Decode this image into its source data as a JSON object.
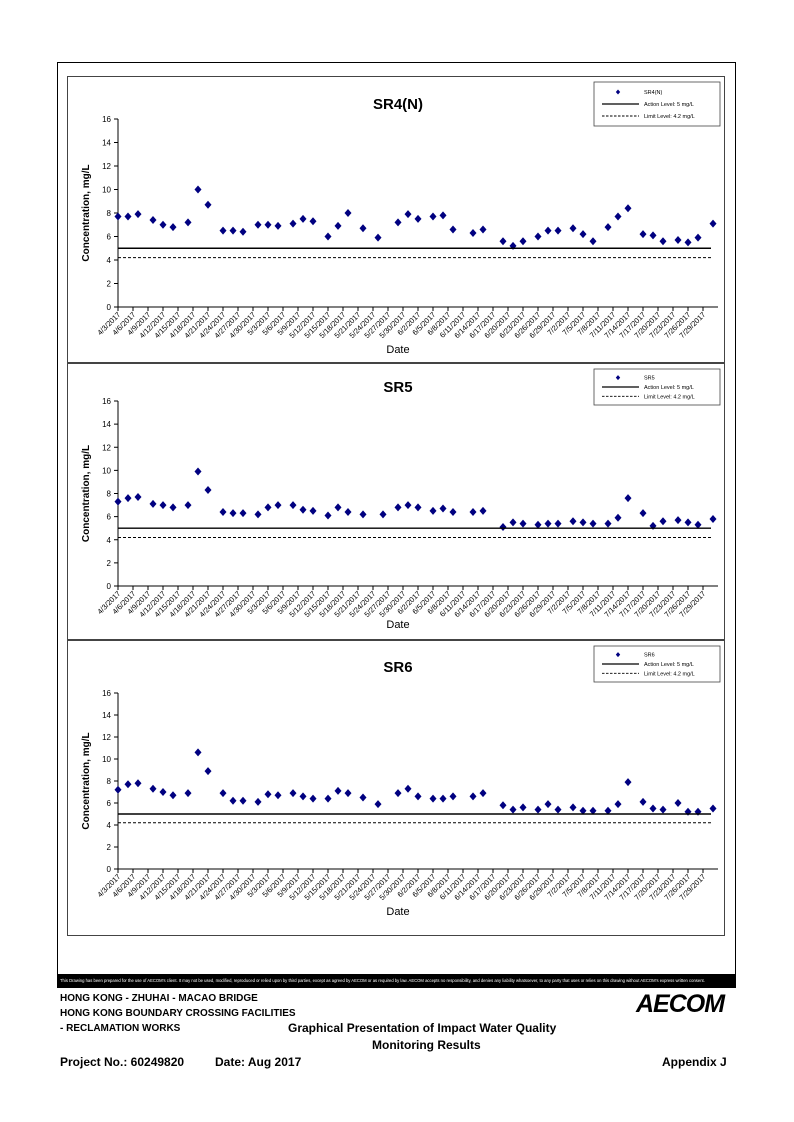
{
  "colors": {
    "marker": "#000080",
    "line": "#000000"
  },
  "chart_data": [
    {
      "type": "scatter",
      "title": "SR4(N)",
      "xlabel": "Date",
      "ylabel": "Concentration, mg/L",
      "ylim": [
        0,
        16
      ],
      "yticks": [
        0,
        2,
        4,
        6,
        8,
        10,
        12,
        14,
        16
      ],
      "grid": false,
      "legend_position": "top-right",
      "xtick_labels": [
        "4/3/2017",
        "4/6/2017",
        "4/9/2017",
        "4/12/2017",
        "4/15/2017",
        "4/18/2017",
        "4/21/2017",
        "4/24/2017",
        "4/27/2017",
        "4/30/2017",
        "5/3/2017",
        "5/6/2017",
        "5/9/2017",
        "5/12/2017",
        "5/15/2017",
        "5/18/2017",
        "5/21/2017",
        "5/24/2017",
        "5/27/2017",
        "5/30/2017",
        "6/2/2017",
        "6/5/2017",
        "6/8/2017",
        "6/11/2017",
        "6/14/2017",
        "6/17/2017",
        "6/20/2017",
        "6/23/2017",
        "6/26/2017",
        "6/29/2017",
        "7/2/2017",
        "7/5/2017",
        "7/8/2017",
        "7/11/2017",
        "7/14/2017",
        "7/17/2017",
        "7/20/2017",
        "7/23/2017",
        "7/26/2017",
        "7/29/2017"
      ],
      "series": [
        {
          "name": "SR4(N)",
          "kind": "points",
          "points": [
            [
              "4/3/2017",
              7.7
            ],
            [
              "4/5/2017",
              7.7
            ],
            [
              "4/7/2017",
              7.9
            ],
            [
              "4/10/2017",
              7.4
            ],
            [
              "4/12/2017",
              7.0
            ],
            [
              "4/14/2017",
              6.8
            ],
            [
              "4/17/2017",
              7.2
            ],
            [
              "4/19/2017",
              10.0
            ],
            [
              "4/21/2017",
              8.7
            ],
            [
              "4/24/2017",
              6.5
            ],
            [
              "4/26/2017",
              6.5
            ],
            [
              "4/28/2017",
              6.4
            ],
            [
              "5/1/2017",
              7.0
            ],
            [
              "5/3/2017",
              7.0
            ],
            [
              "5/5/2017",
              6.9
            ],
            [
              "5/8/2017",
              7.1
            ],
            [
              "5/10/2017",
              7.5
            ],
            [
              "5/12/2017",
              7.3
            ],
            [
              "5/15/2017",
              6.0
            ],
            [
              "5/17/2017",
              6.9
            ],
            [
              "5/19/2017",
              8.0
            ],
            [
              "5/22/2017",
              6.7
            ],
            [
              "5/25/2017",
              5.9
            ],
            [
              "5/29/2017",
              7.2
            ],
            [
              "5/31/2017",
              7.9
            ],
            [
              "6/2/2017",
              7.5
            ],
            [
              "6/5/2017",
              7.7
            ],
            [
              "6/7/2017",
              7.8
            ],
            [
              "6/9/2017",
              6.6
            ],
            [
              "6/13/2017",
              6.3
            ],
            [
              "6/15/2017",
              6.6
            ],
            [
              "6/19/2017",
              5.6
            ],
            [
              "6/21/2017",
              5.2
            ],
            [
              "6/23/2017",
              5.6
            ],
            [
              "6/26/2017",
              6.0
            ],
            [
              "6/28/2017",
              6.5
            ],
            [
              "6/30/2017",
              6.5
            ],
            [
              "7/3/2017",
              6.7
            ],
            [
              "7/5/2017",
              6.2
            ],
            [
              "7/7/2017",
              5.6
            ],
            [
              "7/10/2017",
              6.8
            ],
            [
              "7/12/2017",
              7.7
            ],
            [
              "7/14/2017",
              8.4
            ],
            [
              "7/17/2017",
              6.2
            ],
            [
              "7/19/2017",
              6.1
            ],
            [
              "7/21/2017",
              5.6
            ],
            [
              "7/24/2017",
              5.7
            ],
            [
              "7/26/2017",
              5.5
            ],
            [
              "7/28/2017",
              5.9
            ],
            [
              "7/31/2017",
              7.1
            ]
          ]
        },
        {
          "name": "Action Level: 5 mg/L",
          "kind": "hline",
          "value": 5
        },
        {
          "name": "Limit Level: 4.2 mg/L",
          "kind": "hline",
          "value": 4.2
        }
      ]
    },
    {
      "type": "scatter",
      "title": "SR5",
      "xlabel": "Date",
      "ylabel": "Concentration, mg/L",
      "ylim": [
        0,
        16
      ],
      "yticks": [
        0,
        2,
        4,
        6,
        8,
        10,
        12,
        14,
        16
      ],
      "grid": false,
      "legend_position": "top-right",
      "xtick_labels": [
        "4/3/2017",
        "4/6/2017",
        "4/9/2017",
        "4/12/2017",
        "4/15/2017",
        "4/18/2017",
        "4/21/2017",
        "4/24/2017",
        "4/27/2017",
        "4/30/2017",
        "5/3/2017",
        "5/6/2017",
        "5/9/2017",
        "5/12/2017",
        "5/15/2017",
        "5/18/2017",
        "5/21/2017",
        "5/24/2017",
        "5/27/2017",
        "5/30/2017",
        "6/2/2017",
        "6/5/2017",
        "6/8/2017",
        "6/11/2017",
        "6/14/2017",
        "6/17/2017",
        "6/20/2017",
        "6/23/2017",
        "6/26/2017",
        "6/29/2017",
        "7/2/2017",
        "7/5/2017",
        "7/8/2017",
        "7/11/2017",
        "7/14/2017",
        "7/17/2017",
        "7/20/2017",
        "7/23/2017",
        "7/26/2017",
        "7/29/2017"
      ],
      "series": [
        {
          "name": "SR5",
          "kind": "points",
          "points": [
            [
              "4/3/2017",
              7.3
            ],
            [
              "4/5/2017",
              7.6
            ],
            [
              "4/7/2017",
              7.7
            ],
            [
              "4/10/2017",
              7.1
            ],
            [
              "4/12/2017",
              7.0
            ],
            [
              "4/14/2017",
              6.8
            ],
            [
              "4/17/2017",
              7.0
            ],
            [
              "4/19/2017",
              9.9
            ],
            [
              "4/21/2017",
              8.3
            ],
            [
              "4/24/2017",
              6.4
            ],
            [
              "4/26/2017",
              6.3
            ],
            [
              "4/28/2017",
              6.3
            ],
            [
              "5/1/2017",
              6.2
            ],
            [
              "5/3/2017",
              6.8
            ],
            [
              "5/5/2017",
              7.0
            ],
            [
              "5/8/2017",
              7.0
            ],
            [
              "5/10/2017",
              6.6
            ],
            [
              "5/12/2017",
              6.5
            ],
            [
              "5/15/2017",
              6.1
            ],
            [
              "5/17/2017",
              6.8
            ],
            [
              "5/19/2017",
              6.4
            ],
            [
              "5/22/2017",
              6.2
            ],
            [
              "5/26/2017",
              6.2
            ],
            [
              "5/29/2017",
              6.8
            ],
            [
              "5/31/2017",
              7.0
            ],
            [
              "6/2/2017",
              6.8
            ],
            [
              "6/5/2017",
              6.5
            ],
            [
              "6/7/2017",
              6.7
            ],
            [
              "6/9/2017",
              6.4
            ],
            [
              "6/13/2017",
              6.4
            ],
            [
              "6/15/2017",
              6.5
            ],
            [
              "6/19/2017",
              5.1
            ],
            [
              "6/21/2017",
              5.5
            ],
            [
              "6/23/2017",
              5.4
            ],
            [
              "6/26/2017",
              5.3
            ],
            [
              "6/28/2017",
              5.4
            ],
            [
              "6/30/2017",
              5.4
            ],
            [
              "7/3/2017",
              5.6
            ],
            [
              "7/5/2017",
              5.5
            ],
            [
              "7/7/2017",
              5.4
            ],
            [
              "7/10/2017",
              5.4
            ],
            [
              "7/12/2017",
              5.9
            ],
            [
              "7/14/2017",
              7.6
            ],
            [
              "7/17/2017",
              6.3
            ],
            [
              "7/19/2017",
              5.2
            ],
            [
              "7/21/2017",
              5.6
            ],
            [
              "7/24/2017",
              5.7
            ],
            [
              "7/26/2017",
              5.5
            ],
            [
              "7/28/2017",
              5.3
            ],
            [
              "7/31/2017",
              5.8
            ]
          ]
        },
        {
          "name": "Action Level: 5 mg/L",
          "kind": "hline",
          "value": 5
        },
        {
          "name": "Limit Level: 4.2 mg/L",
          "kind": "hline",
          "value": 4.2
        }
      ]
    },
    {
      "type": "scatter",
      "title": "SR6",
      "xlabel": "Date",
      "ylabel": "Concentration, mg/L",
      "ylim": [
        0,
        16
      ],
      "yticks": [
        0,
        2,
        4,
        6,
        8,
        10,
        12,
        14,
        16
      ],
      "grid": false,
      "legend_position": "top-right",
      "xtick_labels": [
        "4/3/2017",
        "4/6/2017",
        "4/9/2017",
        "4/12/2017",
        "4/15/2017",
        "4/18/2017",
        "4/21/2017",
        "4/24/2017",
        "4/27/2017",
        "4/30/2017",
        "5/3/2017",
        "5/6/2017",
        "5/9/2017",
        "5/12/2017",
        "5/15/2017",
        "5/18/2017",
        "5/21/2017",
        "5/24/2017",
        "5/27/2017",
        "5/30/2017",
        "6/2/2017",
        "6/5/2017",
        "6/8/2017",
        "6/11/2017",
        "6/14/2017",
        "6/17/2017",
        "6/20/2017",
        "6/23/2017",
        "6/26/2017",
        "6/29/2017",
        "7/2/2017",
        "7/5/2017",
        "7/8/2017",
        "7/11/2017",
        "7/14/2017",
        "7/17/2017",
        "7/20/2017",
        "7/23/2017",
        "7/26/2017",
        "7/29/2017"
      ],
      "series": [
        {
          "name": "SR6",
          "kind": "points",
          "points": [
            [
              "4/3/2017",
              7.2
            ],
            [
              "4/5/2017",
              7.7
            ],
            [
              "4/7/2017",
              7.8
            ],
            [
              "4/10/2017",
              7.3
            ],
            [
              "4/12/2017",
              7.0
            ],
            [
              "4/14/2017",
              6.7
            ],
            [
              "4/17/2017",
              6.9
            ],
            [
              "4/19/2017",
              10.6
            ],
            [
              "4/21/2017",
              8.9
            ],
            [
              "4/24/2017",
              6.9
            ],
            [
              "4/26/2017",
              6.2
            ],
            [
              "4/28/2017",
              6.2
            ],
            [
              "5/1/2017",
              6.1
            ],
            [
              "5/3/2017",
              6.8
            ],
            [
              "5/5/2017",
              6.7
            ],
            [
              "5/8/2017",
              6.9
            ],
            [
              "5/10/2017",
              6.6
            ],
            [
              "5/12/2017",
              6.4
            ],
            [
              "5/15/2017",
              6.4
            ],
            [
              "5/17/2017",
              7.1
            ],
            [
              "5/19/2017",
              6.9
            ],
            [
              "5/22/2017",
              6.5
            ],
            [
              "5/25/2017",
              5.9
            ],
            [
              "5/29/2017",
              6.9
            ],
            [
              "5/31/2017",
              7.3
            ],
            [
              "6/2/2017",
              6.6
            ],
            [
              "6/5/2017",
              6.4
            ],
            [
              "6/7/2017",
              6.4
            ],
            [
              "6/9/2017",
              6.6
            ],
            [
              "6/13/2017",
              6.6
            ],
            [
              "6/15/2017",
              6.9
            ],
            [
              "6/19/2017",
              5.8
            ],
            [
              "6/21/2017",
              5.4
            ],
            [
              "6/23/2017",
              5.6
            ],
            [
              "6/26/2017",
              5.4
            ],
            [
              "6/28/2017",
              5.9
            ],
            [
              "6/30/2017",
              5.4
            ],
            [
              "7/3/2017",
              5.6
            ],
            [
              "7/5/2017",
              5.3
            ],
            [
              "7/7/2017",
              5.3
            ],
            [
              "7/10/2017",
              5.3
            ],
            [
              "7/12/2017",
              5.9
            ],
            [
              "7/14/2017",
              7.9
            ],
            [
              "7/17/2017",
              6.1
            ],
            [
              "7/19/2017",
              5.5
            ],
            [
              "7/21/2017",
              5.4
            ],
            [
              "7/24/2017",
              6.0
            ],
            [
              "7/26/2017",
              5.2
            ],
            [
              "7/28/2017",
              5.2
            ],
            [
              "7/31/2017",
              5.5
            ]
          ]
        },
        {
          "name": "Action Level: 5 mg/L",
          "kind": "hline",
          "value": 5
        },
        {
          "name": "Limit Level: 4.2 mg/L",
          "kind": "hline",
          "value": 4.2
        }
      ]
    }
  ],
  "disclaimer": "This Drawing has been prepared for the use of AECOM's client. It may not be used, modified, reproduced or relied upon by third parties, except as agreed by AECOM or as required by law. AECOM accepts no responsibility, and denies any liability whatsoever, to any party that uses or relies on this drawing without AECOM's express written consent.",
  "footer": {
    "project_line1": "HONG KONG - ZHUHAI - MACAO BRIDGE",
    "project_line2": "HONG KONG BOUNDARY CROSSING FACILITIES",
    "project_line3": "- RECLAMATION WORKS",
    "title_line1": "Graphical Presentation of Impact Water Quality",
    "title_line2": "Monitoring Results",
    "project_no": "Project No.: 60249820",
    "date": "Date: Aug 2017",
    "appendix": "Appendix J",
    "logo": "AECOM"
  }
}
